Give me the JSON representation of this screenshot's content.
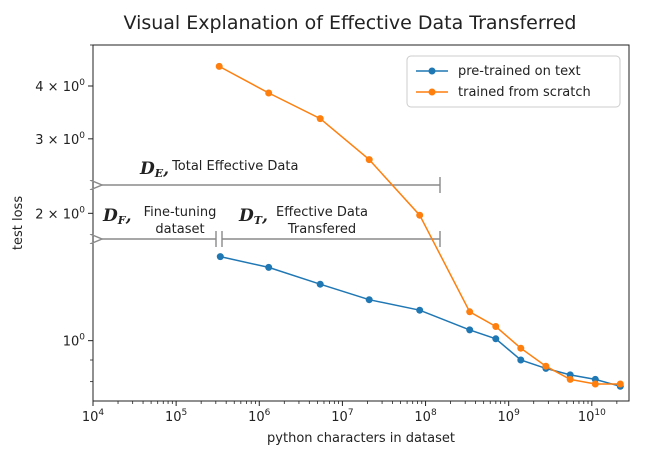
{
  "chart_data": {
    "type": "line",
    "title": "Visual Explanation of Effective Data Transferred",
    "xlabel": "python characters in dataset",
    "ylabel": "test loss",
    "xscale": "log",
    "yscale": "log",
    "xlim": [
      10000,
      28000000000
    ],
    "ylim": [
      0.72,
      5.0
    ],
    "x_ticks": [
      {
        "value": 10000,
        "base": "10",
        "exp": "4"
      },
      {
        "value": 100000,
        "base": "10",
        "exp": "5"
      },
      {
        "value": 1000000,
        "base": "10",
        "exp": "6"
      },
      {
        "value": 10000000,
        "base": "10",
        "exp": "7"
      },
      {
        "value": 100000000,
        "base": "10",
        "exp": "8"
      },
      {
        "value": 1000000000,
        "base": "10",
        "exp": "9"
      },
      {
        "value": 10000000000,
        "base": "10",
        "exp": "10"
      }
    ],
    "y_ticks": [
      {
        "value": 4,
        "label": "4 × 10",
        "exp": "0"
      },
      {
        "value": 3,
        "label": "3 × 10",
        "exp": "0"
      },
      {
        "value": 2,
        "label": "2 × 10",
        "exp": "0"
      },
      {
        "value": 1,
        "label": "10",
        "exp": "0"
      }
    ],
    "y_minor_ticks": [
      0.8,
      0.9,
      5
    ],
    "grid": false,
    "legend_position": "top-right",
    "series": [
      {
        "name": "pre-trained on text",
        "color": "#1f77b4",
        "x": [
          340000,
          1300000,
          5400000,
          21000000,
          85000000,
          340000000,
          700000000,
          1400000000,
          2800000000,
          5500000000,
          11000000000,
          22000000000
        ],
        "y": [
          1.58,
          1.49,
          1.36,
          1.25,
          1.18,
          1.06,
          1.01,
          0.9,
          0.86,
          0.83,
          0.81,
          0.78
        ]
      },
      {
        "name": "trained from scratch",
        "color": "#ff7f0e",
        "x": [
          330000,
          1300000,
          5400000,
          21000000,
          85000000,
          340000000,
          700000000,
          1400000000,
          2800000000,
          5500000000,
          11000000000,
          22000000000
        ],
        "y": [
          4.45,
          3.85,
          3.35,
          2.68,
          1.98,
          1.17,
          1.08,
          0.96,
          0.87,
          0.81,
          0.79,
          0.79
        ]
      }
    ],
    "annotations": {
      "de": {
        "symbol": "D",
        "sub": "E",
        "text": "Total Effective Data"
      },
      "df": {
        "symbol": "D",
        "sub": "F",
        "line1": "Fine-tuning",
        "line2": "dataset"
      },
      "dt": {
        "symbol": "D",
        "sub": "T",
        "line1": "Effective Data",
        "line2": "Transfered"
      }
    }
  }
}
